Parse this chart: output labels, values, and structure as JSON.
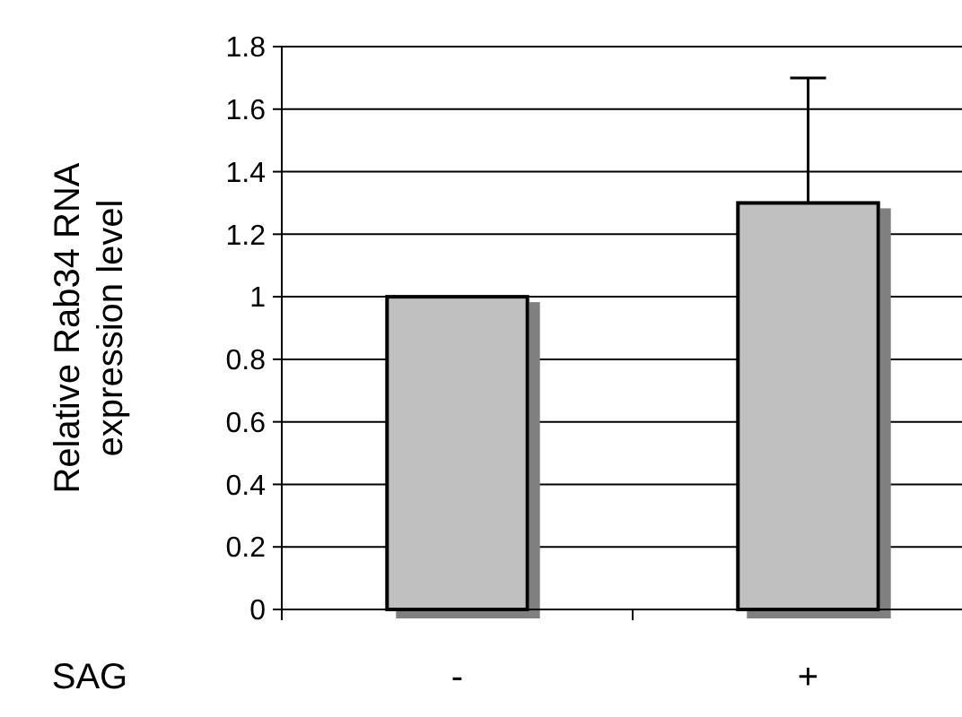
{
  "chart_data": {
    "type": "bar",
    "xlabel": "SAG",
    "ylabel": "Relative Rab34 RNA\nexpression level",
    "categories": [
      "-",
      "+"
    ],
    "values": [
      1.0,
      1.3
    ],
    "errors": [
      null,
      0.4
    ],
    "color": "#c0c0c0",
    "ylim": [
      0,
      1.8
    ],
    "yticks": [
      0,
      0.2,
      0.4,
      0.6,
      0.8,
      1,
      1.2,
      1.4,
      1.6,
      1.8
    ],
    "grid": "y"
  }
}
